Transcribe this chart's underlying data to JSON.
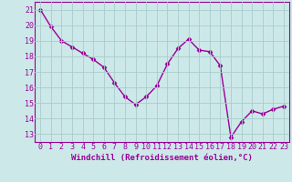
{
  "x": [
    0,
    1,
    2,
    3,
    4,
    5,
    6,
    7,
    8,
    9,
    10,
    11,
    12,
    13,
    14,
    15,
    16,
    17,
    18,
    19,
    20,
    21,
    22,
    23
  ],
  "y": [
    21.0,
    19.9,
    19.0,
    18.6,
    18.2,
    17.8,
    17.3,
    16.3,
    15.4,
    14.9,
    15.4,
    16.1,
    17.5,
    18.5,
    19.1,
    18.4,
    18.3,
    17.4,
    12.8,
    13.8,
    14.5,
    14.3,
    14.6,
    14.8
  ],
  "line_color": "#990099",
  "marker": "D",
  "marker_size": 2.5,
  "bg_color": "#cce8e8",
  "grid_color": "#aacccc",
  "xlabel": "Windchill (Refroidissement éolien,°C)",
  "xlabel_fontsize": 6.5,
  "xtick_labels": [
    "0",
    "1",
    "2",
    "3",
    "4",
    "5",
    "6",
    "7",
    "8",
    "9",
    "10",
    "11",
    "12",
    "13",
    "14",
    "15",
    "16",
    "17",
    "18",
    "19",
    "20",
    "21",
    "22",
    "23"
  ],
  "ytick_values": [
    13,
    14,
    15,
    16,
    17,
    18,
    19,
    20,
    21
  ],
  "ylim": [
    12.5,
    21.5
  ],
  "xlim": [
    -0.5,
    23.5
  ],
  "tick_fontsize": 6.0,
  "linewidth": 1.0
}
